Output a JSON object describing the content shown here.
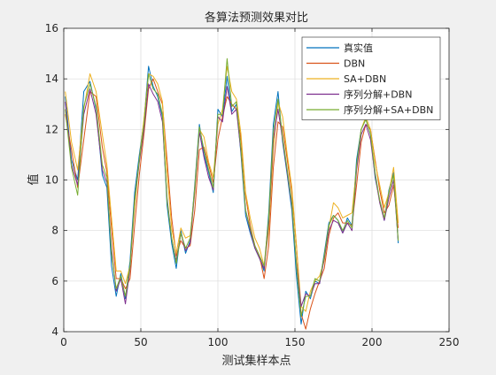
{
  "chart_data": {
    "type": "line",
    "title": "各算法预测效果对比",
    "xlabel": "测试集样本点",
    "ylabel": "值",
    "xlim": [
      0,
      250
    ],
    "ylim": [
      4,
      16
    ],
    "xticks": [
      0,
      50,
      100,
      150,
      200,
      250
    ],
    "yticks": [
      4,
      6,
      8,
      10,
      12,
      14,
      16
    ],
    "grid": true,
    "legend_position": "top-right",
    "series": [
      {
        "name": "真实值",
        "color": "#0072BD",
        "x": [
          1,
          5,
          9,
          13,
          17,
          21,
          25,
          28,
          31,
          34,
          37,
          40,
          43,
          46,
          49,
          52,
          55,
          58,
          61,
          64,
          67,
          70,
          73,
          76,
          79,
          82,
          85,
          88,
          91,
          94,
          97,
          100,
          103,
          106,
          109,
          112,
          115,
          118,
          121,
          124,
          127,
          130,
          133,
          136,
          139,
          142,
          145,
          148,
          151,
          154,
          157,
          160,
          163,
          166,
          169,
          172,
          175,
          178,
          181,
          184,
          187,
          190,
          193,
          196,
          199,
          202,
          205,
          208,
          211,
          214,
          217
        ],
        "values": [
          13.3,
          10.8,
          10,
          13.5,
          13.9,
          12.8,
          10.2,
          9.7,
          6.6,
          5.4,
          6.3,
          5.3,
          6.8,
          9.5,
          11,
          12.3,
          14.5,
          13.7,
          13.3,
          12.5,
          9,
          7.5,
          6.5,
          8,
          7.1,
          7.6,
          9.8,
          12.2,
          11,
          10.3,
          9.5,
          12.8,
          12.5,
          14.1,
          12.7,
          13,
          11,
          8.6,
          7.9,
          7.3,
          6.9,
          6.4,
          8.7,
          12.2,
          13.5,
          11.5,
          10.2,
          8.8,
          6.2,
          4.3,
          5.6,
          5.3,
          6,
          5.9,
          7.1,
          8.3,
          8.6,
          8.4,
          7.9,
          8.5,
          8.2,
          10.8,
          12,
          12.4,
          11.8,
          10.1,
          9.2,
          8.4,
          9.6,
          10.3,
          7.5
        ]
      },
      {
        "name": "DBN",
        "color": "#D95319",
        "x": [
          1,
          5,
          9,
          13,
          17,
          21,
          25,
          28,
          31,
          34,
          37,
          40,
          43,
          46,
          49,
          52,
          55,
          58,
          61,
          64,
          67,
          70,
          73,
          76,
          79,
          82,
          85,
          88,
          91,
          94,
          97,
          100,
          103,
          106,
          109,
          112,
          115,
          118,
          121,
          124,
          127,
          130,
          133,
          136,
          139,
          142,
          145,
          148,
          151,
          154,
          157,
          160,
          163,
          166,
          169,
          172,
          175,
          178,
          181,
          184,
          187,
          190,
          193,
          196,
          199,
          202,
          205,
          208,
          211,
          214,
          217
        ],
        "values": [
          12.6,
          11.2,
          9.7,
          11.6,
          13.5,
          13.3,
          11.3,
          10.3,
          8.1,
          6.1,
          6.1,
          5.7,
          6.1,
          8.2,
          10.2,
          11.8,
          13.6,
          14,
          13.5,
          13,
          10.8,
          8.5,
          7,
          7.6,
          7.3,
          7.4,
          8.8,
          11.2,
          11.3,
          10.6,
          9.9,
          11.6,
          12.5,
          13.3,
          13,
          12.8,
          11.6,
          9.4,
          8.2,
          7.4,
          7,
          6.1,
          7.4,
          10.5,
          12.3,
          12.1,
          10.8,
          9.5,
          7.4,
          4.7,
          4.1,
          4.9,
          5.5,
          6,
          6.5,
          7.8,
          8.5,
          8.7,
          8.3,
          8.3,
          8.2,
          9.8,
          11.5,
          12.2,
          12,
          10.8,
          9.6,
          8.7,
          9,
          9.8,
          8.1
        ]
      },
      {
        "name": "SA+DBN",
        "color": "#EDB120",
        "x": [
          1,
          5,
          9,
          13,
          17,
          21,
          25,
          28,
          31,
          34,
          37,
          40,
          43,
          46,
          49,
          52,
          55,
          58,
          61,
          64,
          67,
          70,
          73,
          76,
          79,
          82,
          85,
          88,
          91,
          94,
          97,
          100,
          103,
          106,
          109,
          112,
          115,
          118,
          121,
          124,
          127,
          130,
          133,
          136,
          139,
          142,
          145,
          148,
          151,
          154,
          157,
          160,
          163,
          166,
          169,
          172,
          175,
          178,
          181,
          184,
          187,
          190,
          193,
          196,
          199,
          202,
          205,
          208,
          211,
          214,
          217
        ],
        "values": [
          13.5,
          11.5,
          10.4,
          12.8,
          14.2,
          13.5,
          11.8,
          10.6,
          8.5,
          6.4,
          6.4,
          5.9,
          6.6,
          8.9,
          10.8,
          12.4,
          14.2,
          14.1,
          13.8,
          13.1,
          10.3,
          8.1,
          7.1,
          8.1,
          7.7,
          7.8,
          9.5,
          12,
          11.7,
          10.7,
          10.1,
          12.2,
          12.8,
          14.5,
          13.5,
          13.2,
          11.8,
          9.5,
          8.5,
          7.7,
          7.3,
          6.6,
          8,
          11.2,
          13.1,
          12.5,
          11,
          9.7,
          7.4,
          5,
          4.8,
          5.6,
          6,
          6.2,
          6.8,
          8.1,
          9.1,
          8.9,
          8.5,
          8.6,
          8.7,
          10.5,
          12,
          12.5,
          12,
          10.7,
          9.8,
          8.9,
          9.5,
          10.5,
          8.3
        ]
      },
      {
        "name": "序列分解+DBN",
        "color": "#7E2F8E",
        "x": [
          1,
          5,
          9,
          13,
          17,
          21,
          25,
          28,
          31,
          34,
          37,
          40,
          43,
          46,
          49,
          52,
          55,
          58,
          61,
          64,
          67,
          70,
          73,
          76,
          79,
          82,
          85,
          88,
          91,
          94,
          97,
          100,
          103,
          106,
          109,
          112,
          115,
          118,
          121,
          124,
          127,
          130,
          133,
          136,
          139,
          142,
          145,
          148,
          151,
          154,
          157,
          160,
          163,
          166,
          169,
          172,
          175,
          178,
          181,
          184,
          187,
          190,
          193,
          196,
          199,
          202,
          205,
          208,
          211,
          214,
          217
        ],
        "values": [
          13.1,
          10.6,
          9.8,
          12.6,
          13.6,
          12.6,
          10.4,
          9.9,
          7.3,
          5.6,
          6.1,
          5.1,
          6.5,
          9.2,
          10.7,
          12,
          13.8,
          13.4,
          13.1,
          12.3,
          9.3,
          7.7,
          6.8,
          7.9,
          7.2,
          7.5,
          9.6,
          11.9,
          10.9,
          10.1,
          9.6,
          12.5,
          12.3,
          13.7,
          12.6,
          12.8,
          11.1,
          8.8,
          8,
          7.3,
          6.9,
          6.5,
          8.3,
          11.6,
          12.8,
          11.6,
          10.3,
          9,
          6.7,
          5,
          5.5,
          5.4,
          5.9,
          5.9,
          6.9,
          8,
          8.4,
          8.3,
          7.9,
          8.3,
          8,
          10.4,
          11.8,
          12.2,
          11.6,
          10.2,
          9.1,
          8.4,
          9.3,
          10,
          7.6
        ]
      },
      {
        "name": "序列分解+SA+DBN",
        "color": "#77AC30",
        "x": [
          1,
          5,
          9,
          13,
          17,
          21,
          25,
          28,
          31,
          34,
          37,
          40,
          43,
          46,
          49,
          52,
          55,
          58,
          61,
          64,
          67,
          70,
          73,
          76,
          79,
          82,
          85,
          88,
          91,
          94,
          97,
          100,
          103,
          106,
          109,
          112,
          115,
          118,
          121,
          124,
          127,
          130,
          133,
          136,
          139,
          142,
          145,
          148,
          151,
          154,
          157,
          160,
          163,
          166,
          169,
          172,
          175,
          178,
          181,
          184,
          187,
          190,
          193,
          196,
          199,
          202,
          205,
          208,
          211,
          214,
          217
        ],
        "values": [
          12.8,
          10.5,
          9.4,
          12.9,
          13.8,
          12.9,
          10.6,
          10.1,
          7.1,
          5.7,
          6.2,
          5.4,
          6.6,
          9.2,
          10.8,
          12.2,
          14.2,
          13.6,
          13.4,
          12.6,
          9.2,
          7.7,
          6.7,
          7.9,
          7.3,
          7.7,
          9.7,
          12.1,
          11.2,
          10.4,
          9.7,
          12.6,
          12.6,
          14.8,
          12.9,
          13.1,
          11.2,
          8.8,
          8.1,
          7.4,
          7,
          6.6,
          8.5,
          11.9,
          13.2,
          11.7,
          10.4,
          9.1,
          6.6,
          4.6,
          5.4,
          5.4,
          6.1,
          6,
          7,
          8.2,
          8.6,
          8.4,
          8,
          8.4,
          8.1,
          10.6,
          12,
          12.4,
          11.8,
          10.3,
          9.2,
          8.5,
          9.5,
          10.2,
          7.6
        ]
      }
    ]
  }
}
